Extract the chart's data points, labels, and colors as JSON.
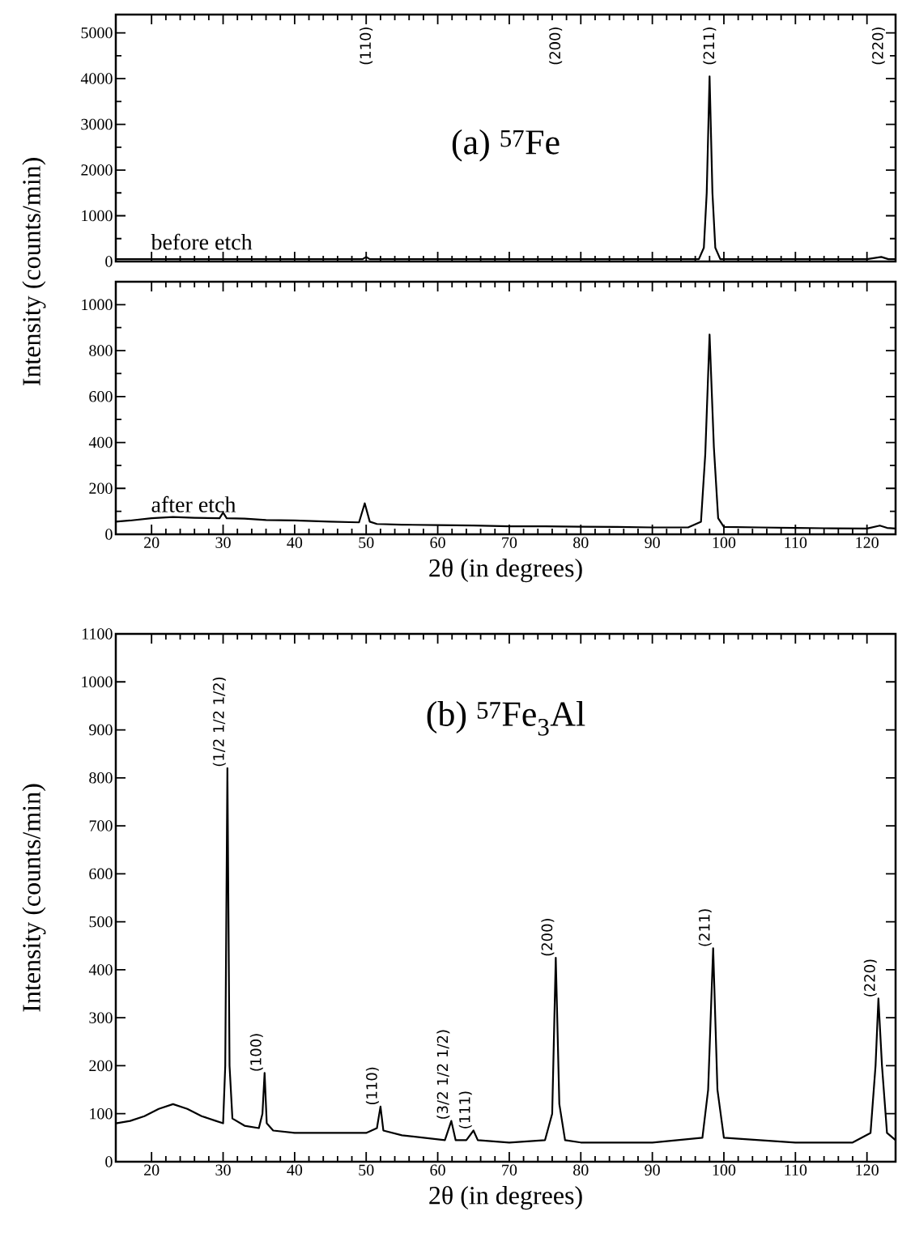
{
  "chart_data": [
    {
      "type": "line",
      "xlim": [
        15,
        124
      ],
      "ylim": [
        0,
        5400
      ],
      "xticks": [
        20,
        30,
        40,
        50,
        60,
        70,
        80,
        90,
        100,
        110,
        120
      ],
      "yticks": [
        0,
        1000,
        2000,
        3000,
        4000,
        5000
      ],
      "tick_labels": "y",
      "series": [
        {
          "name": "before etch",
          "color": "#000000",
          "x": [
            15,
            20,
            30,
            40,
            49.5,
            50,
            50.5,
            60,
            70,
            76.5,
            80,
            90,
            96.5,
            97.2,
            97.6,
            98,
            98.4,
            98.8,
            99.5,
            101,
            110,
            120,
            122,
            123,
            124
          ],
          "values": [
            50,
            50,
            50,
            50,
            50,
            100,
            50,
            50,
            50,
            50,
            50,
            50,
            50,
            300,
            1500,
            4050,
            1500,
            300,
            50,
            50,
            50,
            50,
            100,
            50,
            50
          ]
        }
      ],
      "annotations": [
        "(a) $^{57}$Fe",
        "(110)",
        "(200)",
        {
          "text": "(211)",
          "x": 98,
          "y": 4050
        },
        "(220)"
      ]
    },
    {
      "type": "line",
      "xlim": [
        15,
        124
      ],
      "ylim": [
        0,
        1100
      ],
      "xticks": [
        20,
        30,
        40,
        50,
        60,
        70,
        80,
        90,
        100,
        110,
        120
      ],
      "yticks": [
        0,
        200,
        400,
        600,
        800,
        1000
      ],
      "xlabel": "2θ  (in degrees)",
      "ylabel": "Intensity (counts/min)",
      "series": [
        {
          "name": "after etch",
          "color": "#000000",
          "x": [
            15,
            17,
            20,
            23,
            26,
            29.5,
            30,
            30.5,
            33,
            36,
            40,
            45,
            49,
            49.8,
            50.5,
            51.5,
            55,
            60,
            65,
            70,
            75,
            80,
            85,
            90,
            95,
            96.8,
            97.4,
            98,
            98.6,
            99.2,
            100,
            105,
            110,
            115,
            120,
            121.8,
            122.8,
            124
          ],
          "values": [
            55,
            60,
            70,
            75,
            72,
            70,
            95,
            70,
            68,
            62,
            60,
            55,
            52,
            135,
            55,
            45,
            42,
            40,
            38,
            35,
            35,
            33,
            32,
            30,
            30,
            55,
            350,
            870,
            380,
            70,
            32,
            30,
            28,
            26,
            25,
            38,
            28,
            25
          ]
        }
      ]
    },
    {
      "type": "line",
      "xlim": [
        15,
        124
      ],
      "ylim": [
        0,
        1100
      ],
      "xticks": [
        20,
        30,
        40,
        50,
        60,
        70,
        80,
        90,
        100,
        110,
        120
      ],
      "yticks": [
        0,
        100,
        200,
        300,
        400,
        500,
        600,
        700,
        800,
        900,
        1000,
        1100
      ],
      "xlabel": "2θ  (in degrees)",
      "ylabel": "Intensity (counts/min)",
      "series": [
        {
          "color": "#000000",
          "x": [
            15,
            17,
            19,
            21,
            23,
            25,
            27,
            29,
            30,
            30.3,
            30.6,
            30.9,
            31.3,
            33,
            35,
            35.5,
            35.8,
            36.1,
            37,
            40,
            45,
            50,
            51.5,
            52,
            52.4,
            55,
            58,
            61,
            61.9,
            62.5,
            64,
            65,
            65.6,
            70,
            75,
            76,
            76.5,
            77,
            77.8,
            80,
            85,
            90,
            97,
            97.8,
            98.5,
            99.1,
            100,
            105,
            110,
            118,
            120.5,
            121.2,
            121.6,
            122.1,
            122.8,
            124
          ],
          "values": [
            80,
            85,
            95,
            110,
            120,
            110,
            95,
            85,
            80,
            200,
            820,
            200,
            90,
            75,
            70,
            100,
            185,
            80,
            65,
            60,
            60,
            60,
            70,
            115,
            65,
            55,
            50,
            45,
            85,
            45,
            45,
            65,
            45,
            40,
            45,
            100,
            425,
            120,
            45,
            40,
            40,
            40,
            50,
            150,
            445,
            150,
            50,
            45,
            40,
            40,
            60,
            200,
            340,
            200,
            60,
            45
          ]
        }
      ],
      "annotations": [
        "(b) $^{57}$Fe$_{3}$Al",
        {
          "text": "(1/2 1/2 1/2)",
          "x": 30.6,
          "y": 820
        },
        {
          "text": "(100)",
          "x": 35.8,
          "y": 185
        },
        {
          "text": "(110)",
          "x": 52,
          "y": 115
        },
        {
          "text": "(3/2 1/2 1/2)",
          "x": 61.9,
          "y": 85
        },
        {
          "text": "(111)",
          "x": 65,
          "y": 65
        },
        {
          "text": "(200)",
          "x": 76.5,
          "y": 425
        },
        {
          "text": "(211)",
          "x": 98.5,
          "y": 445
        },
        {
          "text": "(220)",
          "x": 121.6,
          "y": 340
        }
      ]
    }
  ]
}
